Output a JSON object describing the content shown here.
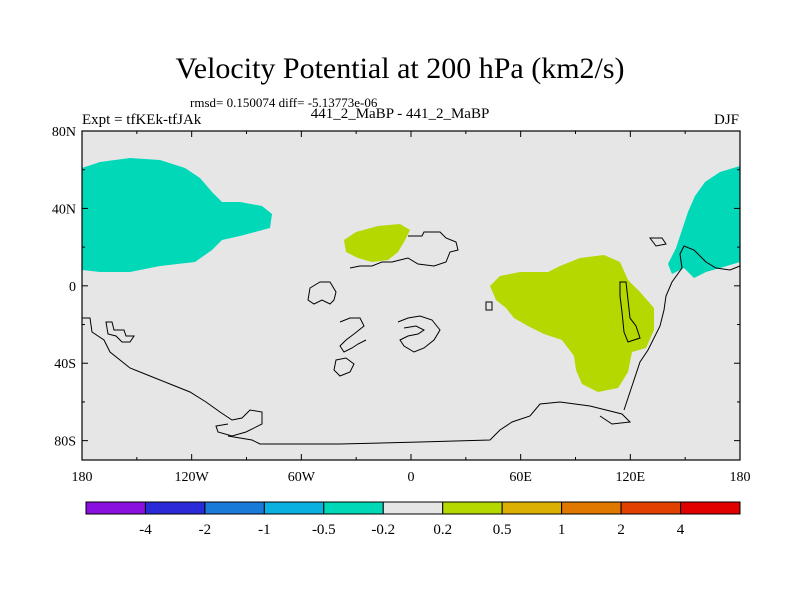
{
  "header": {
    "title": "Velocity Potential at 200 hPa (km2/s)",
    "stats": "rmsd= 0.150074 diff= -5.13773e-06",
    "left_label": "Expt = tfKEk-tfJAk",
    "center_label": "441_2_MaBP - 441_2_MaBP",
    "right_label": "DJF"
  },
  "chart_data": {
    "type": "heatmap",
    "title": "Velocity Potential at 200 hPa (km2/s)",
    "x_ticks": [
      "180",
      "120W",
      "60W",
      "0",
      "60E",
      "120E",
      "180"
    ],
    "y_ticks": [
      "80N",
      "40N",
      "0",
      "40S",
      "80S"
    ],
    "xlim": [
      -180,
      180
    ],
    "ylim": [
      -90,
      80
    ],
    "colorbar": {
      "levels": [
        "-4",
        "-2",
        "-1",
        "-0.5",
        "-0.2",
        "0.2",
        "0.5",
        "1",
        "2",
        "4"
      ],
      "colors": [
        "#8a10e0",
        "#2a2ad8",
        "#1a7ad8",
        "#0ab0e0",
        "#00d8b8",
        "#e6e6e6",
        "#b4d800",
        "#dcb000",
        "#e07800",
        "#e04000",
        "#e00000"
      ]
    },
    "background_color": "#e6e6e6",
    "regions": [
      {
        "name": "negative-region-north-pacific-america",
        "level": "-0.5 to -0.2",
        "color": "#00d8b8"
      },
      {
        "name": "negative-region-west-pacific",
        "level": "-0.5 to -0.2",
        "color": "#00d8b8"
      },
      {
        "name": "positive-region-north-atlantic",
        "level": "0.2 to 0.5",
        "color": "#b4d800"
      },
      {
        "name": "positive-region-indian-ocean",
        "level": "0.2 to 0.5",
        "color": "#b4d800"
      }
    ]
  }
}
